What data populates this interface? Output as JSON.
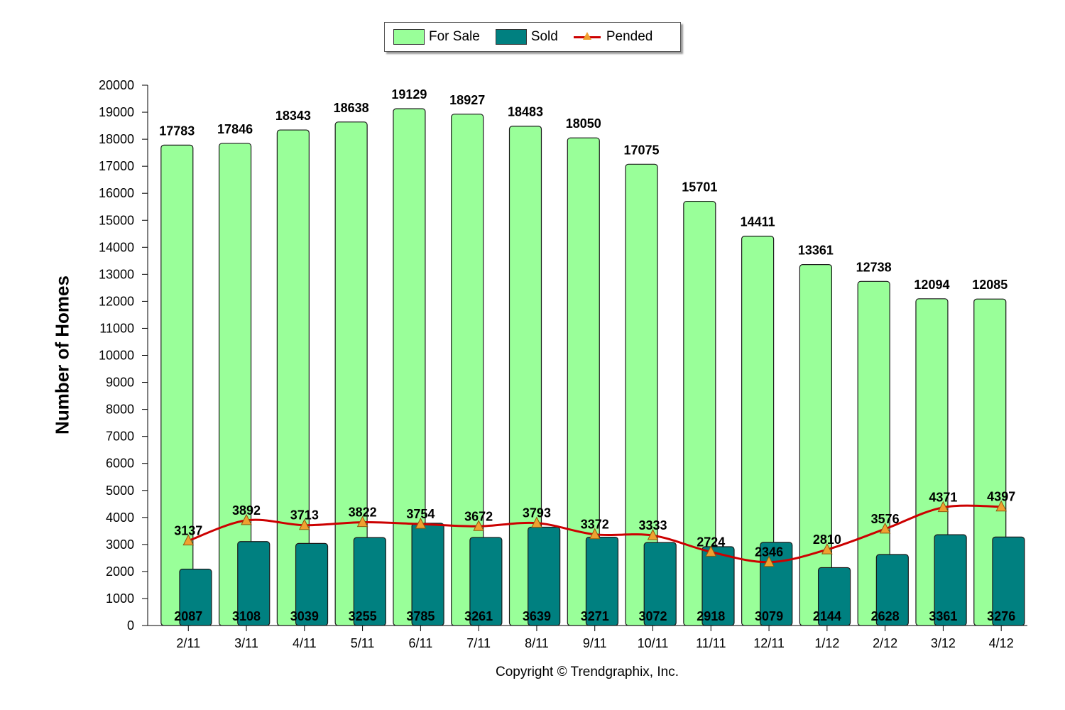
{
  "chart_data": {
    "type": "bar",
    "title": "",
    "xlabel": "",
    "ylabel": "Number of Homes",
    "ylim": [
      0,
      20000
    ],
    "ytick_step": 1000,
    "categories": [
      "2/11",
      "3/11",
      "4/11",
      "5/11",
      "6/11",
      "7/11",
      "8/11",
      "9/11",
      "10/11",
      "11/11",
      "12/11",
      "1/12",
      "2/12",
      "3/12",
      "4/12"
    ],
    "series": [
      {
        "name": "For Sale",
        "type": "bar",
        "color": "#99ff99",
        "values": [
          17783,
          17846,
          18343,
          18638,
          19129,
          18927,
          18483,
          18050,
          17075,
          15701,
          14411,
          13361,
          12738,
          12094,
          12085
        ]
      },
      {
        "name": "Sold",
        "type": "bar",
        "color": "#008080",
        "values": [
          2087,
          3108,
          3039,
          3255,
          3785,
          3261,
          3639,
          3271,
          3072,
          2918,
          3079,
          2144,
          2628,
          3361,
          3276
        ]
      },
      {
        "name": "Pended",
        "type": "line",
        "color": "#cc0000",
        "marker_color": "#f0a030",
        "values": [
          3137,
          3892,
          3713,
          3822,
          3754,
          3672,
          3793,
          3372,
          3333,
          2724,
          2346,
          2810,
          3576,
          4371,
          4397
        ]
      }
    ],
    "legend": {
      "position": "top-center"
    },
    "grid": false
  },
  "footer": {
    "copyright": "Copyright © Trendgraphix, Inc."
  }
}
